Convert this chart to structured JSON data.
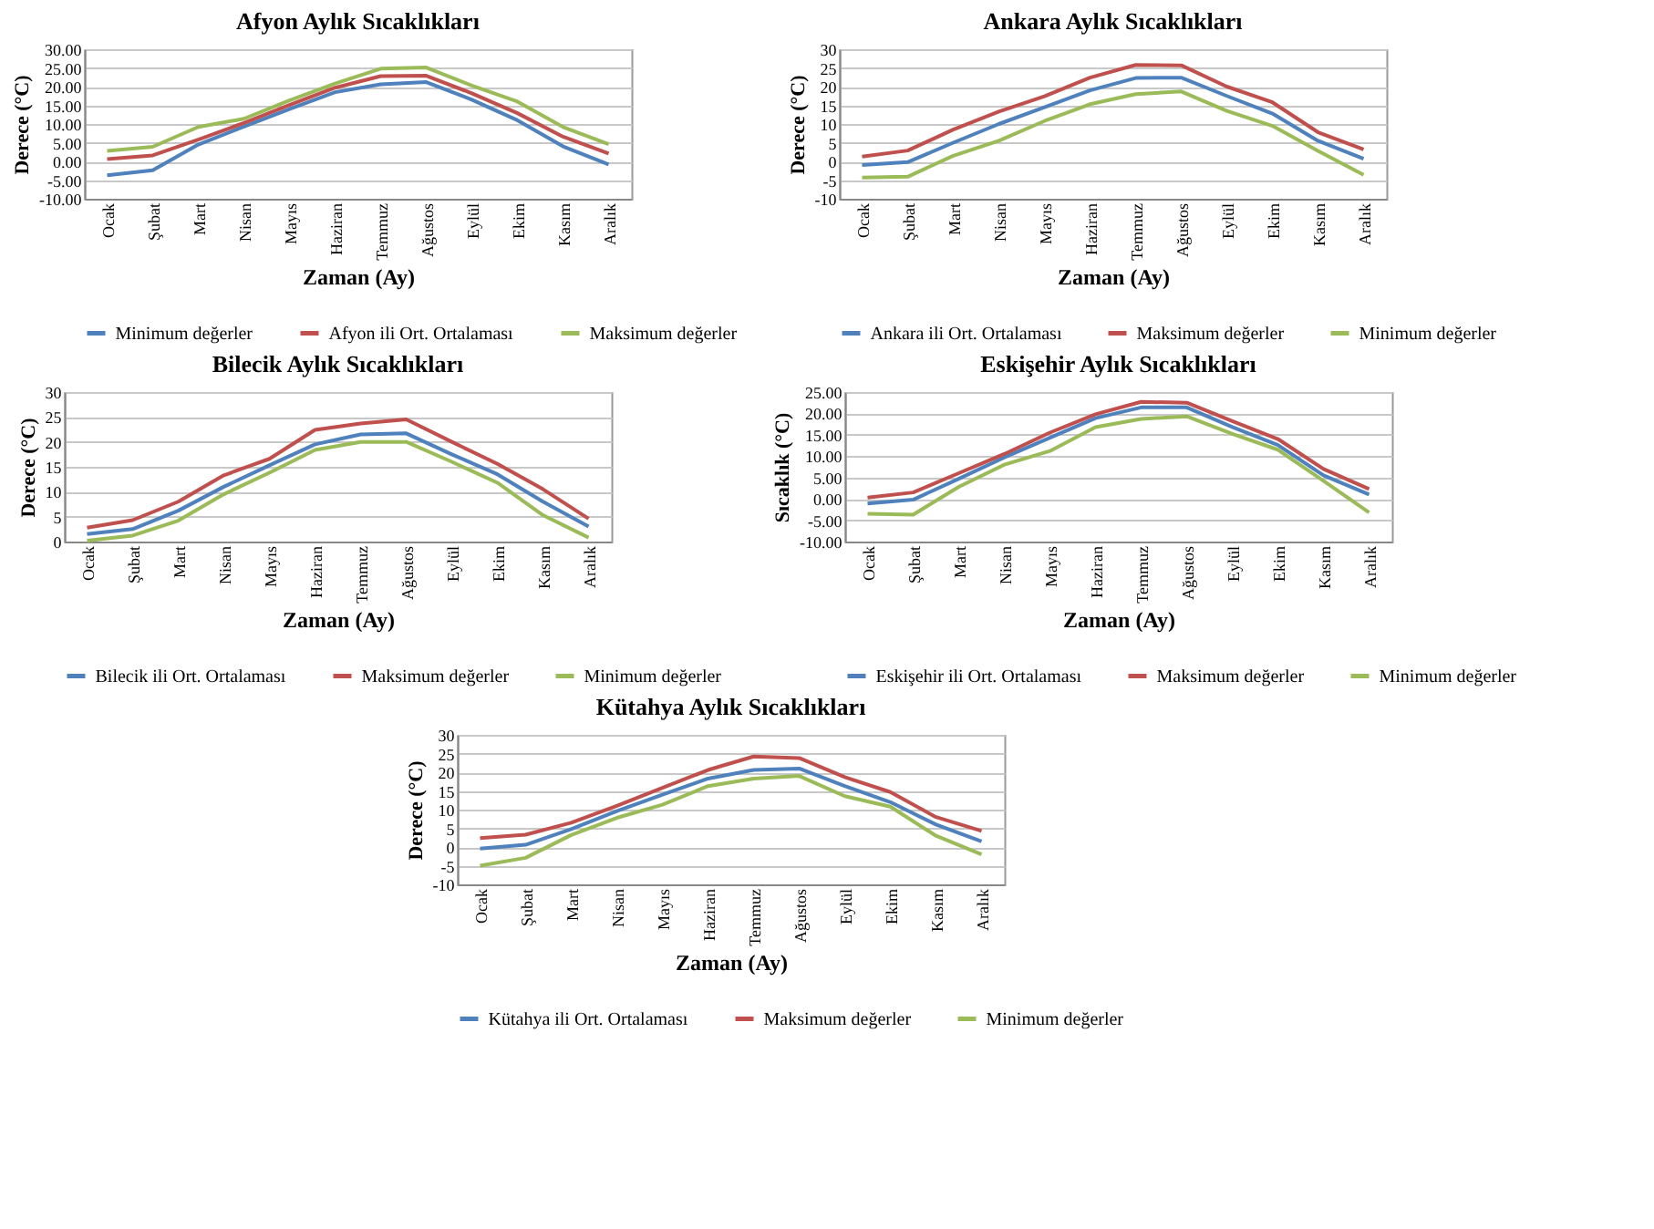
{
  "chart_data": [
    {
      "type": "line",
      "title": "Afyon Aylık Sıcaklıkları",
      "xlabel": "Zaman (Ay)",
      "ylabel": "Derece (°C)",
      "categories": [
        "Ocak",
        "Şubat",
        "Mart",
        "Nisan",
        "Mayıs",
        "Haziran",
        "Temmuz",
        "Ağustos",
        "Eylül",
        "Ekim",
        "Kasım",
        "Aralık"
      ],
      "series": [
        {
          "name": "Minimum değerler",
          "color": "#4f81bd",
          "values": [
            -3.7,
            -2.4,
            4.5,
            9.3,
            14,
            18.5,
            20.6,
            21.2,
            16.5,
            11,
            4,
            -0.8
          ]
        },
        {
          "name": "Afyon ili Ort. Ortalaması",
          "color": "#c0504d",
          "values": [
            0.6,
            1.6,
            5.8,
            10.3,
            15.1,
            19.7,
            22.8,
            22.9,
            18.2,
            12.9,
            6.6,
            2.1
          ]
        },
        {
          "name": "Maksimum değerler",
          "color": "#9bbb59",
          "values": [
            2.8,
            3.9,
            9.2,
            11.4,
            16.3,
            20.8,
            24.8,
            25.1,
            20.3,
            16,
            9.2,
            4.6
          ]
        }
      ],
      "ylim": [
        -10,
        30
      ],
      "yticks": [
        {
          "value": -10,
          "label": "-10.00"
        },
        {
          "value": -5,
          "label": "-5.00"
        },
        {
          "value": 0,
          "label": "0.00"
        },
        {
          "value": 5,
          "label": "5.00"
        },
        {
          "value": 10,
          "label": "10.00"
        },
        {
          "value": 15,
          "label": "15.00"
        },
        {
          "value": 20,
          "label": "20.00"
        },
        {
          "value": 25,
          "label": "25.00"
        },
        {
          "value": 30,
          "label": "30.00"
        }
      ],
      "grid": "y",
      "legend": "bottom",
      "marker": "none",
      "line_style": "solid"
    },
    {
      "type": "line",
      "title": "Ankara Aylık Sıcaklıkları",
      "xlabel": "Zaman (Ay)",
      "ylabel": "Derece (°C)",
      "categories": [
        "Ocak",
        "Şubat",
        "Mart",
        "Nisan",
        "Mayıs",
        "Haziran",
        "Temmuz",
        "Ağustos",
        "Eylül",
        "Ekim",
        "Kasım",
        "Aralık"
      ],
      "series": [
        {
          "name": "Ankara ili Ort. Ortalaması",
          "color": "#4f81bd",
          "values": [
            -1,
            -0.2,
            5,
            10,
            14.5,
            19,
            22.3,
            22.4,
            17.5,
            12.8,
            5.5,
            0.7
          ]
        },
        {
          "name": "Maksimum değerler",
          "color": "#c0504d",
          "values": [
            1.3,
            2.9,
            8.5,
            13.3,
            17.4,
            22.4,
            25.8,
            25.7,
            20,
            15.8,
            7.8,
            3.2
          ]
        },
        {
          "name": "Minimum değerler",
          "color": "#9bbb59",
          "values": [
            -4.3,
            -4.1,
            1.5,
            5.5,
            10.8,
            15.3,
            18,
            18.7,
            13.5,
            9.5,
            2.8,
            -3.6
          ]
        }
      ],
      "ylim": [
        -10,
        30
      ],
      "yticks": [
        -10,
        -5,
        0,
        5,
        10,
        15,
        20,
        25,
        30
      ],
      "grid": "y",
      "legend": "bottom",
      "marker": "none",
      "line_style": "solid"
    },
    {
      "type": "line",
      "title": "Bilecik Aylık Sıcaklıkları",
      "xlabel": "Zaman (Ay)",
      "ylabel": "Derece (°C)",
      "categories": [
        "Ocak",
        "Şubat",
        "Mart",
        "Nisan",
        "Mayıs",
        "Haziran",
        "Temmuz",
        "Ağustos",
        "Eylül",
        "Ekim",
        "Kasım",
        "Aralık"
      ],
      "series": [
        {
          "name": "Bilecik ili Ort. Ortalaması",
          "color": "#4f81bd",
          "values": [
            1.5,
            2.5,
            6.2,
            11,
            15.3,
            19.5,
            21.5,
            21.7,
            17.5,
            13.5,
            8,
            3
          ]
        },
        {
          "name": "Maksimum değerler",
          "color": "#c0504d",
          "values": [
            2.8,
            4.3,
            8,
            13.3,
            16.6,
            22.4,
            23.7,
            24.5,
            20,
            15.6,
            10.5,
            4.6
          ]
        },
        {
          "name": "Minimum değerler",
          "color": "#9bbb59",
          "values": [
            0.2,
            1.2,
            4.2,
            9.5,
            13.8,
            18.4,
            20,
            20,
            16,
            11.8,
            5.3,
            0.8
          ]
        }
      ],
      "ylim": [
        0,
        30
      ],
      "yticks": [
        0,
        5,
        10,
        15,
        20,
        25,
        30
      ],
      "grid": "y",
      "legend": "bottom",
      "marker": "none",
      "line_style": "solid"
    },
    {
      "type": "line",
      "title": "Eskişehir Aylık Sıcaklıkları",
      "xlabel": "Zaman (Ay)",
      "ylabel": "Sıcaklık (°C)",
      "categories": [
        "Ocak",
        "Şubat",
        "Mart",
        "Nisan",
        "Mayıs",
        "Haziran",
        "Temmuz",
        "Ağustos",
        "Eylül",
        "Ekim",
        "Kasım",
        "Aralık"
      ],
      "series": [
        {
          "name": "Eskişehir ili Ort. Ortalaması",
          "color": "#4f81bd",
          "values": [
            -1.1,
            -0.2,
            4.7,
            9.7,
            14.3,
            18.9,
            21.4,
            21.4,
            16.8,
            12.6,
            5.5,
            1
          ]
        },
        {
          "name": "Maksimum değerler",
          "color": "#c0504d",
          "values": [
            0.3,
            1.5,
            6,
            10.5,
            15.5,
            19.8,
            22.7,
            22.5,
            18.2,
            14,
            7,
            2.3
          ]
        },
        {
          "name": "Minimum değerler",
          "color": "#9bbb59",
          "values": [
            -3.5,
            -3.7,
            2.8,
            8,
            11.2,
            16.8,
            18.7,
            19.3,
            15.2,
            11.5,
            4.2,
            -3.2
          ]
        }
      ],
      "ylim": [
        -10,
        25
      ],
      "yticks": [
        {
          "value": -10,
          "label": "-10.00"
        },
        {
          "value": -5,
          "label": "-5.00"
        },
        {
          "value": 0,
          "label": "0.00"
        },
        {
          "value": 5,
          "label": "5.00"
        },
        {
          "value": 10,
          "label": "10.00"
        },
        {
          "value": 15,
          "label": "15.00"
        },
        {
          "value": 20,
          "label": "20.00"
        },
        {
          "value": 25,
          "label": "25.00"
        }
      ],
      "grid": "y",
      "legend": "bottom",
      "marker": "none",
      "line_style": "solid"
    },
    {
      "type": "line",
      "title": "Kütahya Aylık Sıcaklıkları",
      "xlabel": "Zaman (Ay)",
      "ylabel": "Derece (°C)",
      "categories": [
        "Ocak",
        "Şubat",
        "Mart",
        "Nisan",
        "Mayıs",
        "Haziran",
        "Temmuz",
        "Ağustos",
        "Eylül",
        "Ekim",
        "Kasım",
        "Aralık"
      ],
      "series": [
        {
          "name": "Kütahya ili Ort. Ortalaması",
          "color": "#4f81bd",
          "values": [
            -0.4,
            0.6,
            4.8,
            9.6,
            14,
            18.3,
            20.6,
            21,
            16.3,
            12,
            6,
            1.5
          ]
        },
        {
          "name": "Maksimum değerler",
          "color": "#c0504d",
          "values": [
            2.4,
            3.3,
            6.5,
            11,
            15.8,
            20.6,
            24.2,
            23.8,
            18.7,
            14.7,
            8,
            4.3
          ]
        },
        {
          "name": "Minimum değerler",
          "color": "#9bbb59",
          "values": [
            -5,
            -2.9,
            3.2,
            7.8,
            11.3,
            16.3,
            18.3,
            19,
            13.6,
            10.8,
            3,
            -2
          ]
        }
      ],
      "ylim": [
        -10,
        30
      ],
      "yticks": [
        -10,
        -5,
        0,
        5,
        10,
        15,
        20,
        25,
        30
      ],
      "grid": "y",
      "legend": "bottom",
      "marker": "none",
      "line_style": "solid"
    }
  ]
}
